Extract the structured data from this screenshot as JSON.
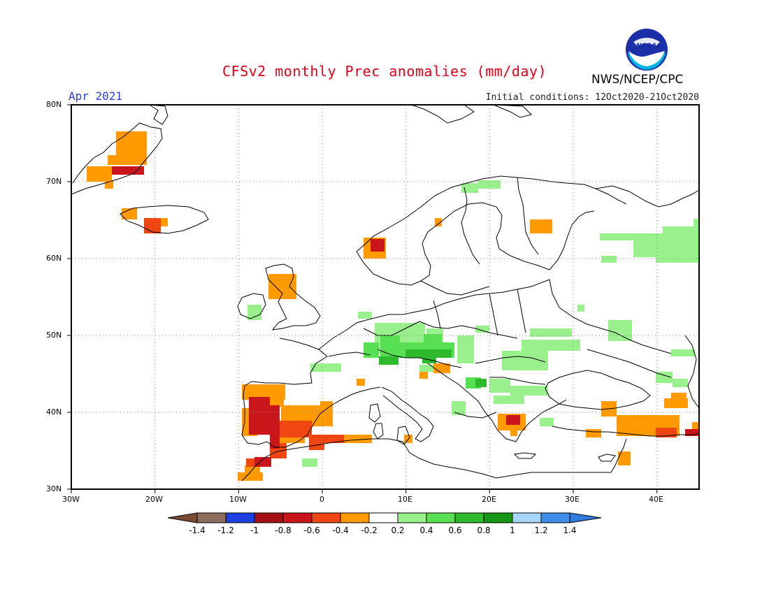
{
  "header": {
    "title": "CFSv2 monthly Prec anomalies (mm/day)",
    "period": "Apr 2021",
    "initial_conditions": "Initial conditions: 12Oct2020-21Oct2020",
    "agency": "NWS/NCEP/CPC",
    "logo_text": "NOAA"
  },
  "map": {
    "lat_labels": [
      "80N",
      "70N",
      "60N",
      "50N",
      "40N",
      "30N"
    ],
    "lon_labels": [
      "30W",
      "20W",
      "10W",
      "0",
      "10E",
      "20E",
      "30E",
      "40E"
    ],
    "lat_range": [
      30,
      80
    ],
    "lon_range": [
      -30,
      45
    ],
    "grid": "dotted"
  },
  "colorbar": {
    "labels": [
      "-1.4",
      "-1.2",
      "-1",
      "-0.8",
      "-0.6",
      "-0.4",
      "-0.2",
      "0.2",
      "0.4",
      "0.6",
      "0.8",
      "1",
      "1.2",
      "1.4"
    ],
    "colors": [
      "#8c6d5e",
      "#1c3fe0",
      "#a50f15",
      "#c8161b",
      "#f04712",
      "#ff9a00",
      "#ffffff",
      "#99f08c",
      "#57e052",
      "#2dba2d",
      "#149614",
      "#a7d7fb",
      "#3f8fea"
    ],
    "lower_arrow_color": "#7a4a36",
    "upper_arrow_color": "#2f7be0"
  },
  "anomaly_colors": {
    "neg_strong": "#c8161b",
    "neg_mid": "#f04712",
    "neg_weak": "#ff9a00",
    "pos_weak": "#99f08c",
    "pos_mid": "#57e052",
    "pos_strong": "#2dba2d"
  }
}
